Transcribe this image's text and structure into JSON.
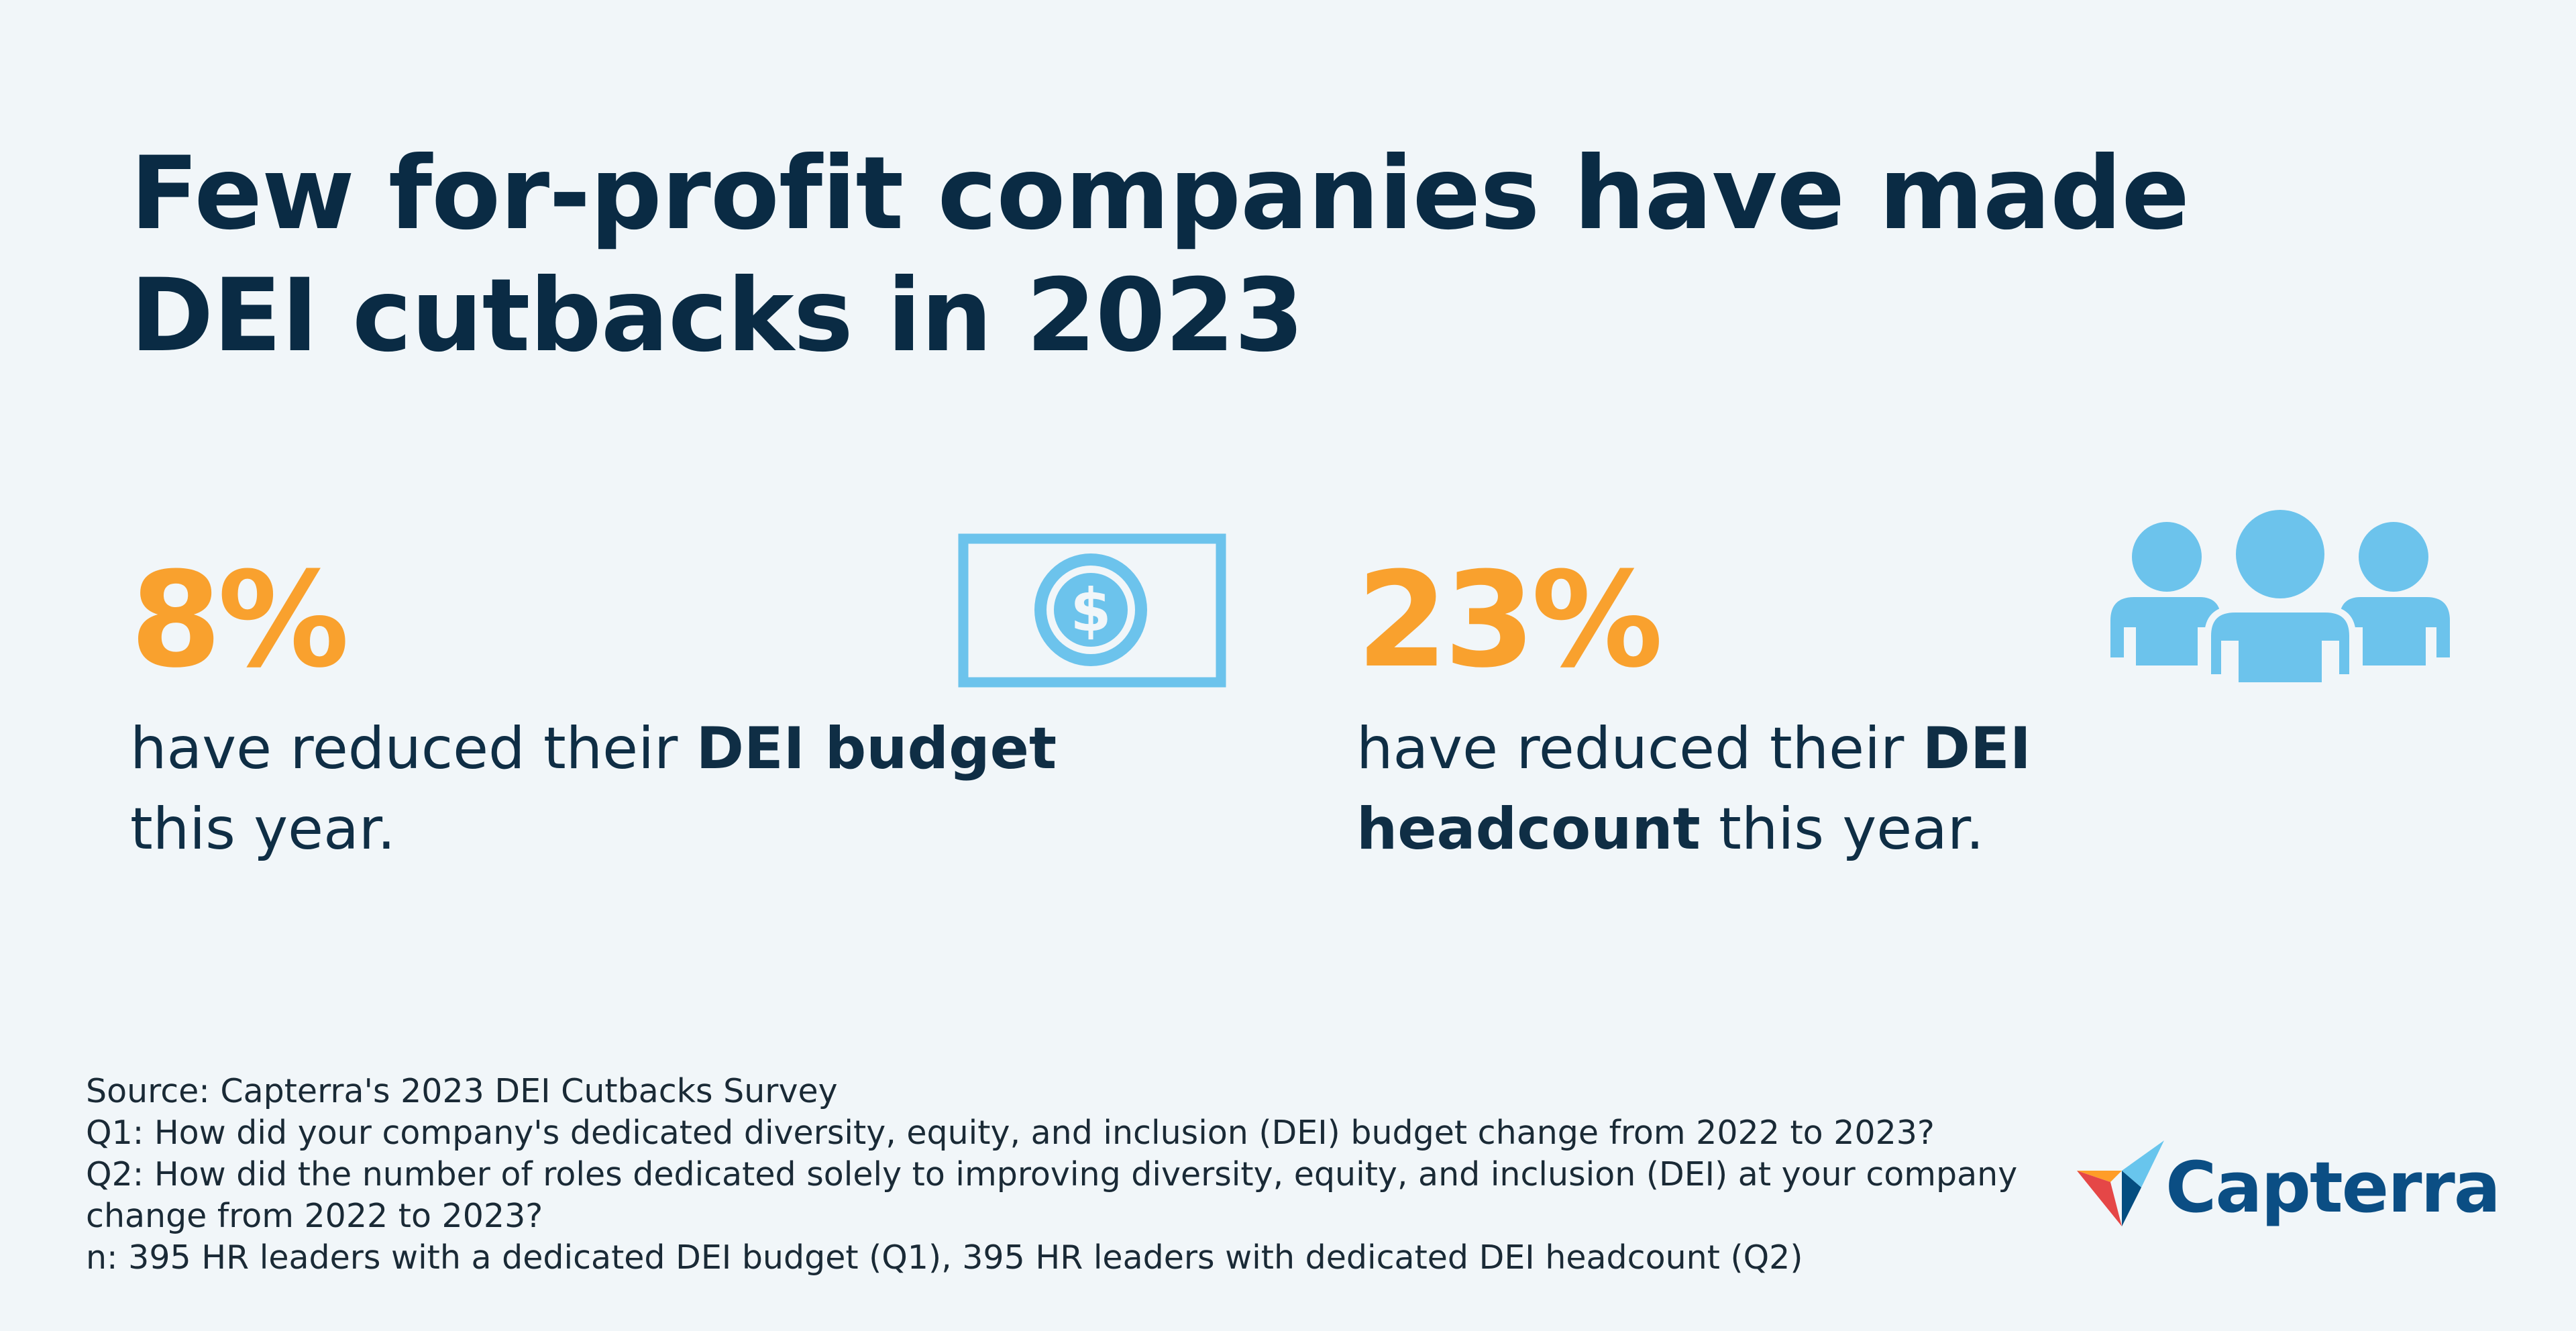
{
  "title": "Few for-profit companies have made DEI cutbacks in 2023",
  "stats": [
    {
      "value": "8%",
      "desc_before": "have reduced their ",
      "desc_bold": "DEI budget",
      "desc_after": " this year.",
      "icon": "dollar-bill-icon"
    },
    {
      "value": "23%",
      "desc_before": "have reduced their ",
      "desc_bold": "DEI headcount",
      "desc_after": " this year.",
      "icon": "people-group-icon"
    }
  ],
  "footnotes": {
    "source": "Source: Capterra's 2023 DEI Cutbacks Survey",
    "q1": "Q1: How did your company's dedicated diversity, equity, and inclusion (DEI) budget change from 2022 to 2023?",
    "q2": "Q2: How did the number of roles dedicated solely to improving diversity, equity, and inclusion (DEI) at your company change from 2022 to 2023?",
    "n": "n: 395 HR leaders with a dedicated DEI budget (Q1), 395 HR leaders with dedicated DEI headcount (Q2)"
  },
  "brand": {
    "name": "Capterra",
    "logo_icon": "capterra-arrow-logo"
  },
  "colors": {
    "background": "#f1f6f9",
    "title": "#0a2b44",
    "accent": "#f9a12e",
    "icon": "#6cc3ec",
    "brand": "#0b4e84"
  }
}
